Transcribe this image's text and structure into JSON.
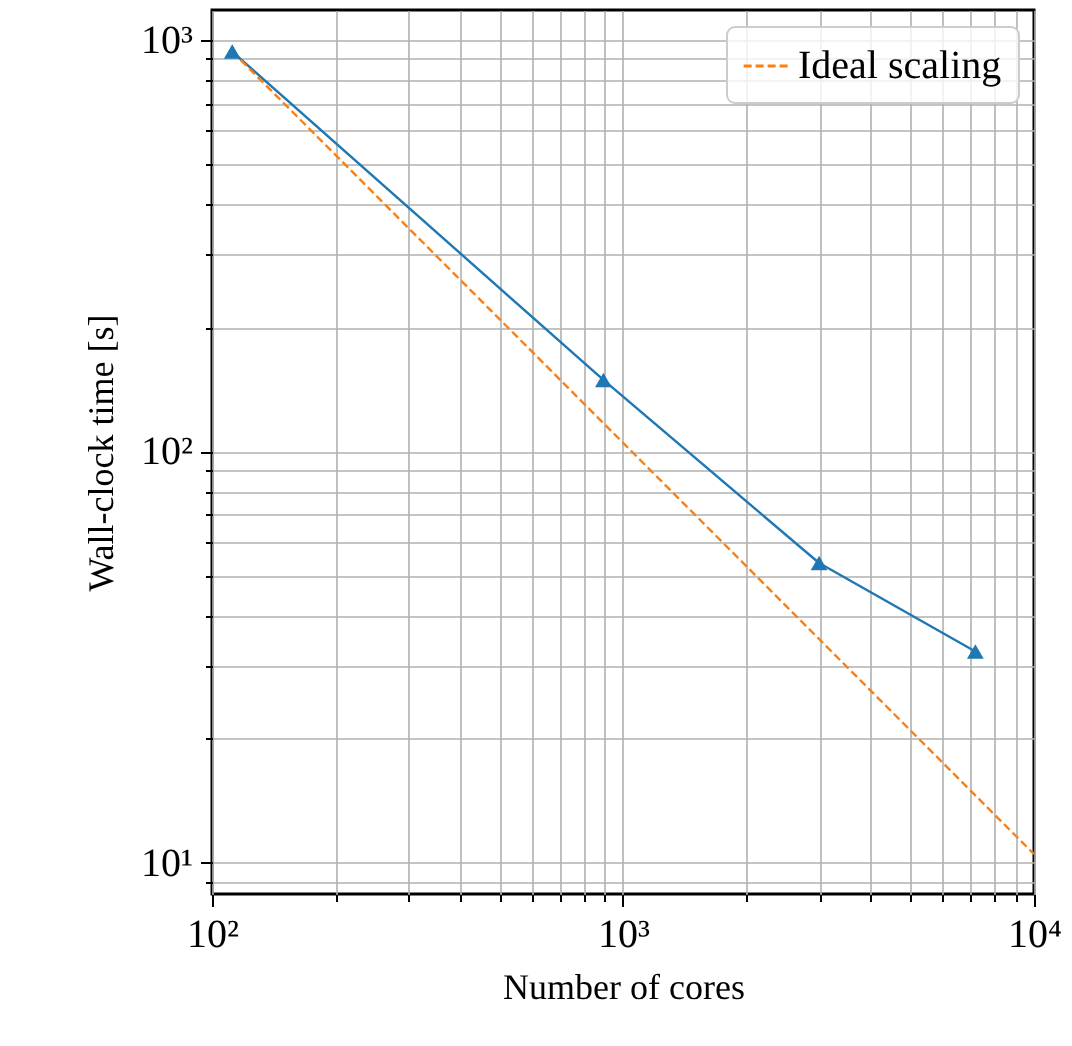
{
  "chart_data": {
    "type": "line",
    "xlabel": "Number of cores",
    "ylabel": "Wall-clock time [s]",
    "log": "xy",
    "grid": true,
    "legend": "top right",
    "xlim": [
      100,
      10000
    ],
    "ylim": [
      8.4,
      1180
    ],
    "xticks": [
      {
        "value": 100,
        "label": "10²"
      },
      {
        "value": 200,
        "label": null
      },
      {
        "value": 300,
        "label": null
      },
      {
        "value": 400,
        "label": null
      },
      {
        "value": 500,
        "label": null
      },
      {
        "value": 600,
        "label": null
      },
      {
        "value": 700,
        "label": null
      },
      {
        "value": 800,
        "label": null
      },
      {
        "value": 900,
        "label": null
      },
      {
        "value": 1000,
        "label": "10³"
      },
      {
        "value": 2000,
        "label": null
      },
      {
        "value": 3000,
        "label": null
      },
      {
        "value": 4000,
        "label": null
      },
      {
        "value": 5000,
        "label": null
      },
      {
        "value": 6000,
        "label": null
      },
      {
        "value": 7000,
        "label": null
      },
      {
        "value": 8000,
        "label": null
      },
      {
        "value": 9000,
        "label": null
      },
      {
        "value": 10000,
        "label": "10⁴"
      }
    ],
    "yticks": [
      {
        "value": 9,
        "label": null
      },
      {
        "value": 10,
        "label": "10¹"
      },
      {
        "value": 20,
        "label": null
      },
      {
        "value": 30,
        "label": null
      },
      {
        "value": 40,
        "label": null
      },
      {
        "value": 50,
        "label": null
      },
      {
        "value": 60,
        "label": null
      },
      {
        "value": 70,
        "label": null
      },
      {
        "value": 80,
        "label": null
      },
      {
        "value": 90,
        "label": null
      },
      {
        "value": 100,
        "label": "10²"
      },
      {
        "value": 200,
        "label": null
      },
      {
        "value": 300,
        "label": null
      },
      {
        "value": 400,
        "label": null
      },
      {
        "value": 500,
        "label": null
      },
      {
        "value": 600,
        "label": null
      },
      {
        "value": 700,
        "label": null
      },
      {
        "value": 800,
        "label": null
      },
      {
        "value": 900,
        "label": null
      },
      {
        "value": 1000,
        "label": "10³"
      }
    ],
    "series": [
      {
        "color": "#1f77b4",
        "marker": "triangle",
        "line_style": "solid",
        "x": [
          112,
          896,
          3000,
          7200
        ],
        "values": [
          935,
          149,
          53.5,
          32.6
        ]
      },
      {
        "name": "Ideal scaling",
        "color": "#ff7f0e",
        "marker": "none",
        "line_style": "dashed",
        "x": [
          112,
          10000
        ],
        "values": [
          935,
          10.5
        ]
      }
    ]
  }
}
